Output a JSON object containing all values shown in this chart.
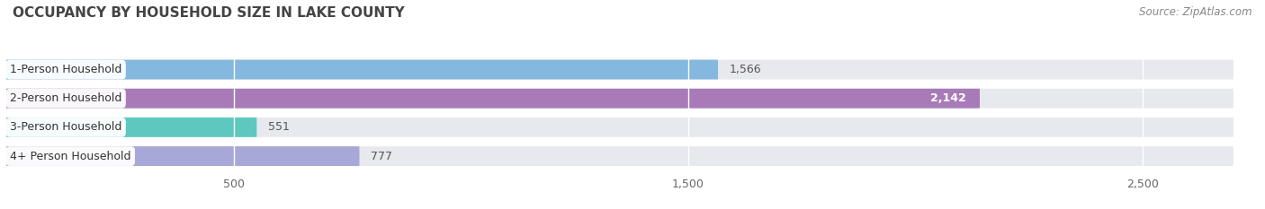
{
  "title": "OCCUPANCY BY HOUSEHOLD SIZE IN LAKE COUNTY",
  "source": "Source: ZipAtlas.com",
  "categories": [
    "1-Person Household",
    "2-Person Household",
    "3-Person Household",
    "4+ Person Household"
  ],
  "values": [
    1566,
    2142,
    551,
    777
  ],
  "bar_colors": [
    "#85b8df",
    "#a87bb8",
    "#5ec8be",
    "#a8a8d8"
  ],
  "value_colors": [
    "#555555",
    "#ffffff",
    "#555555",
    "#555555"
  ],
  "xlim": [
    0,
    2700
  ],
  "xticks": [
    500,
    1500,
    2500
  ],
  "background_color": "#ffffff",
  "bar_background_color": "#e8e8ef",
  "title_fontsize": 11,
  "source_fontsize": 8.5,
  "label_fontsize": 9,
  "value_fontsize": 9
}
